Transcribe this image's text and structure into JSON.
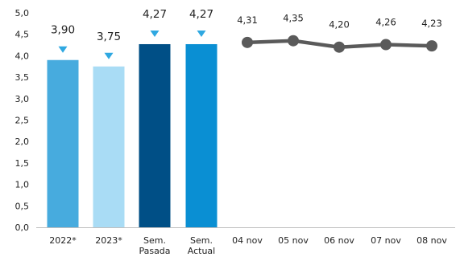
{
  "chart_data": {
    "type": "bar",
    "ylim": [
      0,
      5
    ],
    "y_ticks": [
      "0,0",
      "0,5",
      "1,0",
      "1,5",
      "2,0",
      "2,5",
      "3,0",
      "3,5",
      "4,0",
      "4,5",
      "5,0"
    ],
    "bars": [
      {
        "label": [
          "2022*"
        ],
        "value": 3.9,
        "value_label": "3,90",
        "color": "#47ABDE"
      },
      {
        "label": [
          "2023*"
        ],
        "value": 3.75,
        "value_label": "3,75",
        "color": "#A9DCF5"
      },
      {
        "label": [
          "Sem.",
          "Pasada"
        ],
        "value": 4.27,
        "value_label": "4,27",
        "color": "#004F86"
      },
      {
        "label": [
          "Sem.",
          "Actual"
        ],
        "value": 4.27,
        "value_label": "4,27",
        "color": "#0A8FD3"
      }
    ],
    "line": {
      "type": "line",
      "color": "#5A5A5A",
      "categories": [
        "04 nov",
        "05 nov",
        "06 nov",
        "07 nov",
        "08 nov"
      ],
      "values": [
        4.31,
        4.35,
        4.2,
        4.26,
        4.23
      ],
      "value_labels": [
        "4,31",
        "4,35",
        "4,20",
        "4,26",
        "4,23"
      ]
    },
    "marker_color": "#2FA8E1",
    "grid": false
  }
}
